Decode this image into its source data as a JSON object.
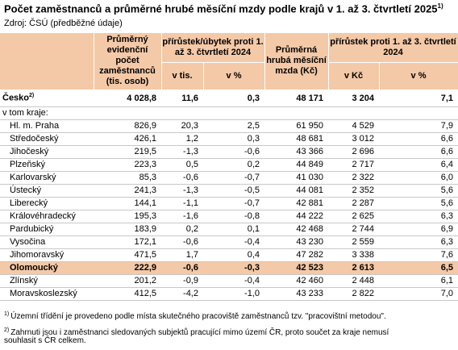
{
  "title": "Počet zaměstnanců a průměrné hrubé měsíční mzdy podle krajů v 1. až 3. čtvrtletí 2025",
  "title_note": "1)",
  "source": "Zdroj: ČSÚ (předběžné údaje)",
  "headers": {
    "avg_employees": "Průměrný evidenční počet zaměstnanců (tis. osob)",
    "emp_change": "přírůstek/úbytek proti 1. až 3. čtvrtletí 2024",
    "emp_change_abs": "v tis.",
    "emp_change_pct": "v %",
    "avg_wage": "Průměrná hrubá měsíční mzda (Kč)",
    "wage_change": "přírůstek proti 1. až 3. čtvrtletí 2024",
    "wage_change_abs": "v Kč",
    "wage_change_pct": "v %"
  },
  "czech": {
    "name": "Česko",
    "note": "2)",
    "employees": "4 028,8",
    "emp_abs": "11,6",
    "emp_pct": "0,3",
    "wage": "48 171",
    "wage_abs": "3 204",
    "wage_pct": "7,1"
  },
  "section_label": "v tom kraje:",
  "regions": [
    {
      "name": "Hl. m. Praha",
      "employees": "826,9",
      "emp_abs": "20,3",
      "emp_pct": "2,5",
      "wage": "61 950",
      "wage_abs": "4 529",
      "wage_pct": "7,9"
    },
    {
      "name": "Středočeský",
      "employees": "426,1",
      "emp_abs": "1,2",
      "emp_pct": "0,3",
      "wage": "48 681",
      "wage_abs": "3 012",
      "wage_pct": "6,6"
    },
    {
      "name": "Jihočeský",
      "employees": "219,5",
      "emp_abs": "-1,3",
      "emp_pct": "-0,6",
      "wage": "43 366",
      "wage_abs": "2 696",
      "wage_pct": "6,6"
    },
    {
      "name": "Plzeňský",
      "employees": "223,3",
      "emp_abs": "0,5",
      "emp_pct": "0,2",
      "wage": "44 849",
      "wage_abs": "2 717",
      "wage_pct": "6,4"
    },
    {
      "name": "Karlovarský",
      "employees": "85,3",
      "emp_abs": "-0,6",
      "emp_pct": "-0,7",
      "wage": "41 030",
      "wage_abs": "2 322",
      "wage_pct": "6,0"
    },
    {
      "name": "Ústecký",
      "employees": "241,3",
      "emp_abs": "-1,3",
      "emp_pct": "-0,5",
      "wage": "44 081",
      "wage_abs": "2 352",
      "wage_pct": "5,6"
    },
    {
      "name": "Liberecký",
      "employees": "144,1",
      "emp_abs": "-1,1",
      "emp_pct": "-0,7",
      "wage": "42 881",
      "wage_abs": "2 287",
      "wage_pct": "5,6"
    },
    {
      "name": "Královéhradecký",
      "employees": "195,3",
      "emp_abs": "-1,6",
      "emp_pct": "-0,8",
      "wage": "44 222",
      "wage_abs": "2 625",
      "wage_pct": "6,3"
    },
    {
      "name": "Pardubický",
      "employees": "183,9",
      "emp_abs": "0,2",
      "emp_pct": "0,1",
      "wage": "42 468",
      "wage_abs": "2 744",
      "wage_pct": "6,9"
    },
    {
      "name": "Vysočina",
      "employees": "172,1",
      "emp_abs": "-0,6",
      "emp_pct": "-0,4",
      "wage": "43 230",
      "wage_abs": "2 559",
      "wage_pct": "6,3"
    },
    {
      "name": "Jihomoravský",
      "employees": "471,5",
      "emp_abs": "1,7",
      "emp_pct": "0,4",
      "wage": "47 282",
      "wage_abs": "3 338",
      "wage_pct": "7,6"
    },
    {
      "name": "Olomoucký",
      "employees": "222,9",
      "emp_abs": "-0,6",
      "emp_pct": "-0,3",
      "wage": "42 523",
      "wage_abs": "2 613",
      "wage_pct": "6,5",
      "highlight": true
    },
    {
      "name": "Zlínský",
      "employees": "201,2",
      "emp_abs": "-0,9",
      "emp_pct": "-0,4",
      "wage": "42 460",
      "wage_abs": "2 448",
      "wage_pct": "6,1"
    },
    {
      "name": "Moravskoslezský",
      "employees": "412,5",
      "emp_abs": "-4,2",
      "emp_pct": "-1,0",
      "wage": "43 233",
      "wage_abs": "2 822",
      "wage_pct": "7,0"
    }
  ],
  "footnotes": [
    {
      "mark": "1)",
      "text": "Územní třídění je provedeno podle místa skutečného pracoviště zaměstnanců tzv. \"pracovištní metodou\"."
    },
    {
      "mark": "2)",
      "text": "Zahrnuti jsou i zaměstnanci sledovaných subjektů pracující mimo území ČR, proto součet za kraje nemusí"
    },
    {
      "mark": "",
      "text": "souhlasit s ČR celkem."
    }
  ]
}
